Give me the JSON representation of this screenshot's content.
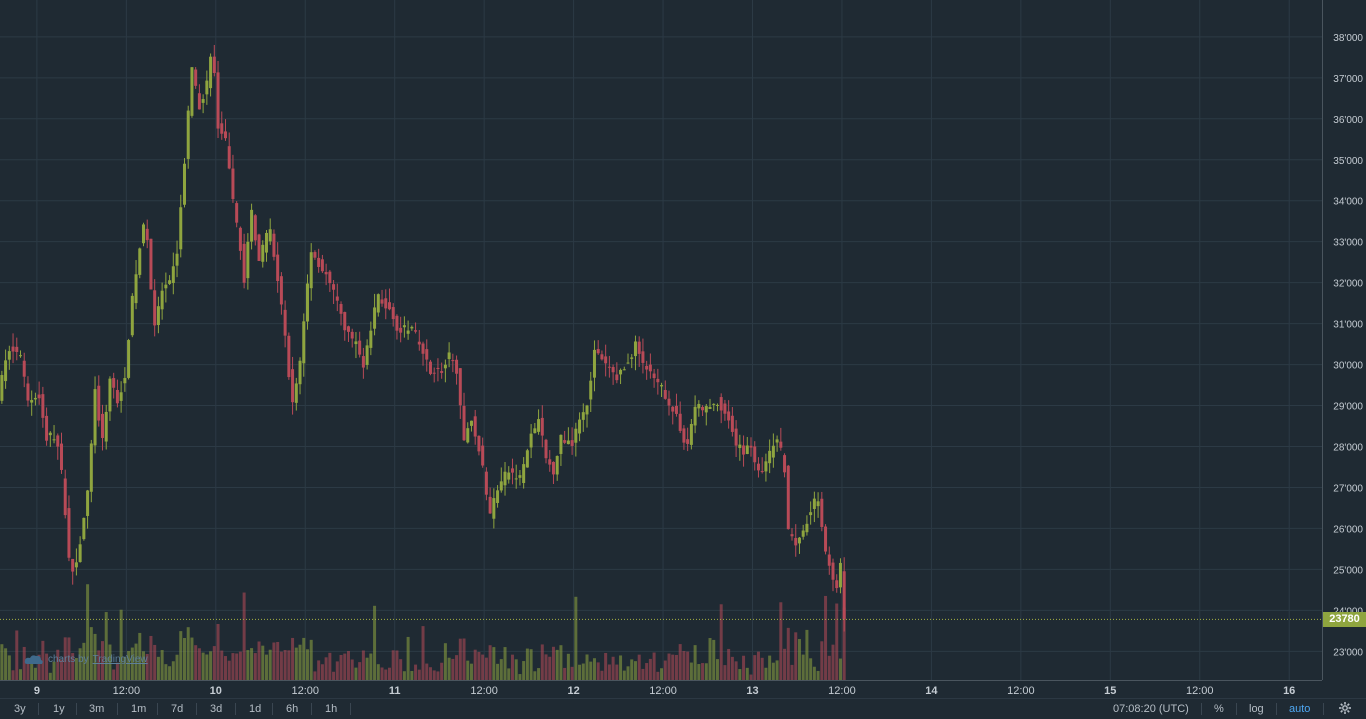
{
  "chart_data": {
    "type": "candlestick",
    "y_axis": {
      "range": [
        22300,
        38900
      ],
      "ticks": [
        "23'000",
        "24'000",
        "25'000",
        "26'000",
        "27'000",
        "28'000",
        "29'000",
        "30'000",
        "31'000",
        "32'000",
        "33'000",
        "34'000",
        "35'000",
        "36'000",
        "37'000",
        "38'000"
      ],
      "tick_values": [
        23000,
        24000,
        25000,
        26000,
        27000,
        28000,
        29000,
        30000,
        31000,
        32000,
        33000,
        34000,
        35000,
        36000,
        37000,
        38000
      ]
    },
    "x_axis": {
      "ticks": [
        "9",
        "12:00",
        "10",
        "12:00",
        "11",
        "12:00",
        "12",
        "12:00",
        "13",
        "12:00",
        "14",
        "12:00",
        "15",
        "12:00",
        "16"
      ],
      "tick_hours": [
        24,
        36,
        48,
        60,
        72,
        84,
        96,
        108,
        120,
        132,
        144,
        156,
        168,
        180,
        192
      ],
      "range_hours": [
        19.05,
        196.4
      ]
    },
    "price_path": [
      [
        19.0,
        29200
      ],
      [
        20.5,
        30400
      ],
      [
        22.0,
        30200
      ],
      [
        23.0,
        29100
      ],
      [
        24.5,
        29300
      ],
      [
        25.5,
        28200
      ],
      [
        26.8,
        28300
      ],
      [
        27.8,
        27000
      ],
      [
        28.8,
        24800
      ],
      [
        29.8,
        25400
      ],
      [
        31.2,
        27000
      ],
      [
        32.0,
        29500
      ],
      [
        33.0,
        28000
      ],
      [
        34.0,
        29700
      ],
      [
        35.0,
        29100
      ],
      [
        36.0,
        29700
      ],
      [
        37.0,
        31500
      ],
      [
        38.0,
        32800
      ],
      [
        38.8,
        33700
      ],
      [
        39.5,
        32000
      ],
      [
        40.0,
        30800
      ],
      [
        41.0,
        31800
      ],
      [
        42.0,
        31900
      ],
      [
        43.0,
        32700
      ],
      [
        44.0,
        34800
      ],
      [
        45.0,
        37200
      ],
      [
        46.0,
        36300
      ],
      [
        47.0,
        36800
      ],
      [
        47.8,
        37800
      ],
      [
        48.5,
        35800
      ],
      [
        49.5,
        35500
      ],
      [
        50.5,
        34000
      ],
      [
        51.5,
        33000
      ],
      [
        52.0,
        31900
      ],
      [
        53.0,
        33800
      ],
      [
        54.0,
        32600
      ],
      [
        55.5,
        33300
      ],
      [
        57.0,
        31500
      ],
      [
        58.0,
        29900
      ],
      [
        58.5,
        29000
      ],
      [
        59.5,
        30000
      ],
      [
        61.0,
        32800
      ],
      [
        62.0,
        32500
      ],
      [
        63.0,
        32200
      ],
      [
        64.5,
        31500
      ],
      [
        65.5,
        30900
      ],
      [
        67.0,
        30500
      ],
      [
        68.0,
        30000
      ],
      [
        69.0,
        30800
      ],
      [
        70.0,
        31700
      ],
      [
        71.5,
        31300
      ],
      [
        73.0,
        30800
      ],
      [
        74.5,
        30900
      ],
      [
        76.0,
        30300
      ],
      [
        77.0,
        29900
      ],
      [
        78.5,
        29800
      ],
      [
        79.5,
        30200
      ],
      [
        80.5,
        30000
      ],
      [
        81.5,
        28000
      ],
      [
        82.3,
        28800
      ],
      [
        83.0,
        28400
      ],
      [
        84.0,
        27500
      ],
      [
        85.0,
        26300
      ],
      [
        86.0,
        27000
      ],
      [
        87.5,
        27400
      ],
      [
        89.0,
        27200
      ],
      [
        90.5,
        28200
      ],
      [
        91.5,
        28700
      ],
      [
        92.5,
        27700
      ],
      [
        93.5,
        27400
      ],
      [
        94.5,
        28200
      ],
      [
        96.0,
        28100
      ],
      [
        97.0,
        28700
      ],
      [
        98.0,
        29000
      ],
      [
        99.0,
        30300
      ],
      [
        100.5,
        30000
      ],
      [
        102.0,
        29700
      ],
      [
        103.5,
        30000
      ],
      [
        104.5,
        30500
      ],
      [
        106.0,
        29900
      ],
      [
        107.0,
        29600
      ],
      [
        108.5,
        29300
      ],
      [
        110.0,
        28700
      ],
      [
        111.5,
        28000
      ],
      [
        112.5,
        29000
      ],
      [
        114.0,
        28900
      ],
      [
        115.5,
        29100
      ],
      [
        117.0,
        28700
      ],
      [
        118.0,
        28000
      ],
      [
        119.0,
        27900
      ],
      [
        120.0,
        28100
      ],
      [
        121.0,
        27300
      ],
      [
        122.0,
        27600
      ],
      [
        123.5,
        28200
      ],
      [
        124.5,
        27600
      ],
      [
        125.0,
        26000
      ],
      [
        126.0,
        25700
      ],
      [
        127.0,
        25900
      ],
      [
        128.0,
        26500
      ],
      [
        129.0,
        26800
      ],
      [
        130.0,
        25500
      ],
      [
        131.0,
        24700
      ],
      [
        131.7,
        24400
      ],
      [
        132.0,
        25200
      ],
      [
        132.5,
        23800
      ]
    ],
    "last_price": "23780",
    "last_price_value": 23780,
    "colors": {
      "up": "#8fa53f",
      "down": "#b84a57",
      "grid": "#2c3a45",
      "background": "#1f2a33",
      "last_line": "#a7b443"
    }
  },
  "toolbar": {
    "ranges": [
      "3y",
      "1y",
      "3m",
      "1m",
      "7d",
      "3d",
      "1d",
      "6h",
      "1h"
    ],
    "time": "07:08:20 (UTC)",
    "percent": "%",
    "log": "log",
    "auto": "auto",
    "settings_icon": "gear-icon"
  },
  "attribution": {
    "prefix": "charts by",
    "brand": "TradingView",
    "icon": "tradingview-cloud-icon"
  }
}
